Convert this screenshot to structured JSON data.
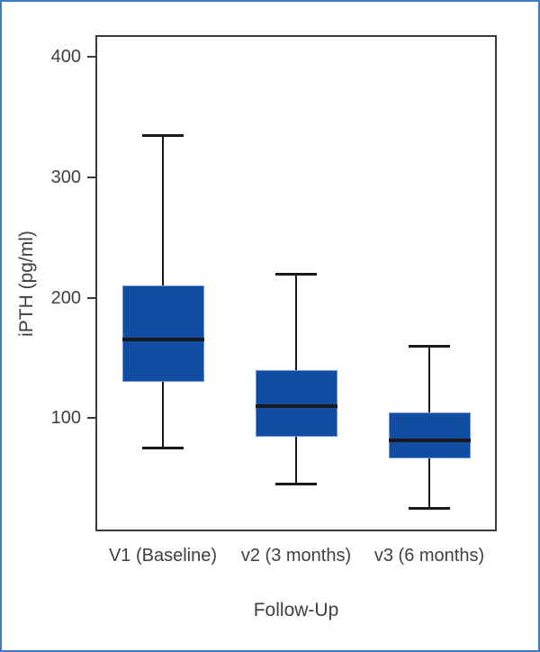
{
  "chart_data": {
    "type": "boxplot",
    "title": "",
    "xlabel": "Follow-Up",
    "ylabel": "iPTH (pg/ml)",
    "categories": [
      "V1 (Baseline)",
      "v2 (3 months)",
      "v3 (6 months)"
    ],
    "series": [
      {
        "category": "V1 (Baseline)",
        "whisker_low": 75,
        "q1": 130,
        "median": 165,
        "q3": 210,
        "whisker_high": 335
      },
      {
        "category": "v2 (3 months)",
        "whisker_low": 45,
        "q1": 85,
        "median": 110,
        "q3": 140,
        "whisker_high": 220
      },
      {
        "category": "v3 (6 months)",
        "whisker_low": 25,
        "q1": 67,
        "median": 82,
        "q3": 105,
        "whisker_high": 160
      }
    ],
    "yticks": [
      100,
      200,
      300,
      400
    ],
    "ylim": [
      7,
      417
    ],
    "grid": false,
    "legend_position": "none",
    "colors": {
      "box_fill": "#114da3",
      "box_edge": "#6f94cf",
      "line": "#1a1a1a",
      "frame": "#3a3a3a",
      "text": "#404040",
      "page_border": "#3d79c4"
    }
  }
}
